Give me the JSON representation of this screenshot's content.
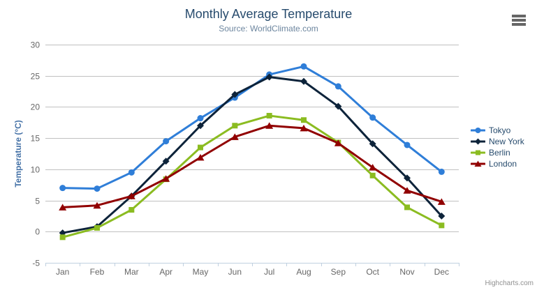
{
  "chart_data": {
    "type": "line",
    "title": "Monthly Average Temperature",
    "subtitle": "Source: WorldClimate.com",
    "categories": [
      "Jan",
      "Feb",
      "Mar",
      "Apr",
      "May",
      "Jun",
      "Jul",
      "Aug",
      "Sep",
      "Oct",
      "Nov",
      "Dec"
    ],
    "xlabel": "",
    "ylabel": "Temperature (°C)",
    "ylim": [
      -5,
      30
    ],
    "ytick_step": 5,
    "ytick_labels": [
      "-5",
      "0",
      "5",
      "10",
      "15",
      "20",
      "25",
      "30"
    ],
    "grid": true,
    "legend_position": "right",
    "series": [
      {
        "name": "Tokyo",
        "color": "#2f7ed8",
        "marker": "circle",
        "values": [
          7.0,
          6.9,
          9.5,
          14.5,
          18.2,
          21.5,
          25.2,
          26.5,
          23.3,
          18.3,
          13.9,
          9.6
        ]
      },
      {
        "name": "New York",
        "color": "#0d233a",
        "marker": "diamond",
        "values": [
          -0.2,
          0.8,
          5.7,
          11.3,
          17.0,
          22.0,
          24.8,
          24.1,
          20.1,
          14.1,
          8.6,
          2.5
        ]
      },
      {
        "name": "Berlin",
        "color": "#8bbc21",
        "marker": "square",
        "values": [
          -0.9,
          0.6,
          3.5,
          8.4,
          13.5,
          17.0,
          18.6,
          17.9,
          14.3,
          9.0,
          3.9,
          1.0
        ]
      },
      {
        "name": "London",
        "color": "#910000",
        "marker": "triangle",
        "values": [
          3.9,
          4.2,
          5.7,
          8.5,
          11.9,
          15.2,
          17.0,
          16.6,
          14.2,
          10.3,
          6.6,
          4.8
        ]
      }
    ]
  },
  "credits": {
    "label": "Highcharts.com"
  },
  "icons": {
    "context_menu": "hamburger-menu-icon"
  },
  "colors": {
    "title": "#274b6d",
    "subtitle": "#6d869f",
    "axis_title": "#4572a7",
    "axis_labels": "#666666",
    "grid": "#c0c0c0",
    "axis_line": "#c0d0e0",
    "legend_text": "#274b6d",
    "credits": "#909090",
    "menu_icon": "#666666"
  }
}
